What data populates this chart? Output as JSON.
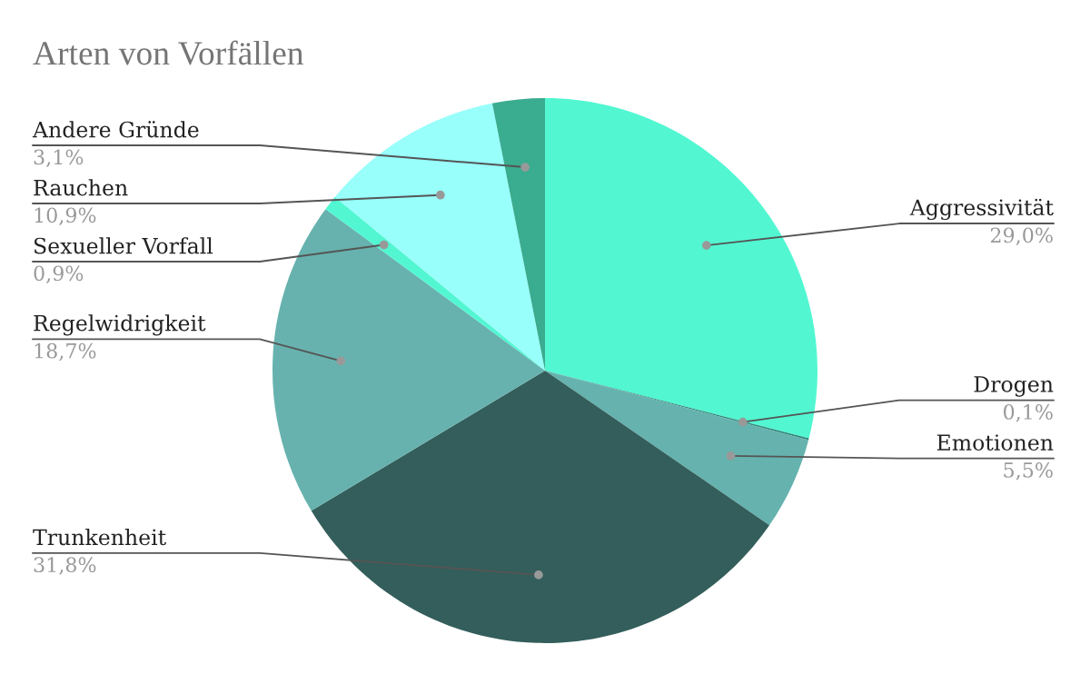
{
  "chart_data": {
    "type": "pie",
    "title": "Arten von Vorfällen",
    "categories": [
      "Aggressivität",
      "Drogen",
      "Emotionen",
      "Trunkenheit",
      "Regelwidrigkeit",
      "Sexueller Vorfall",
      "Rauchen",
      "Andere Gründe"
    ],
    "values": [
      29.0,
      0.1,
      5.5,
      31.8,
      18.7,
      0.9,
      10.9,
      3.1
    ],
    "value_labels": [
      "29,0%",
      "0,1%",
      "5,5%",
      "31,8%",
      "18,7%",
      "0,9%",
      "10,9%",
      "3,1%"
    ],
    "colors": [
      "#52f7d2",
      "#2f8a7a",
      "#66b2ae",
      "#335e5b",
      "#67b2ae",
      "#52f7d2",
      "#98fffb",
      "#3aac8f"
    ],
    "legend": false
  }
}
